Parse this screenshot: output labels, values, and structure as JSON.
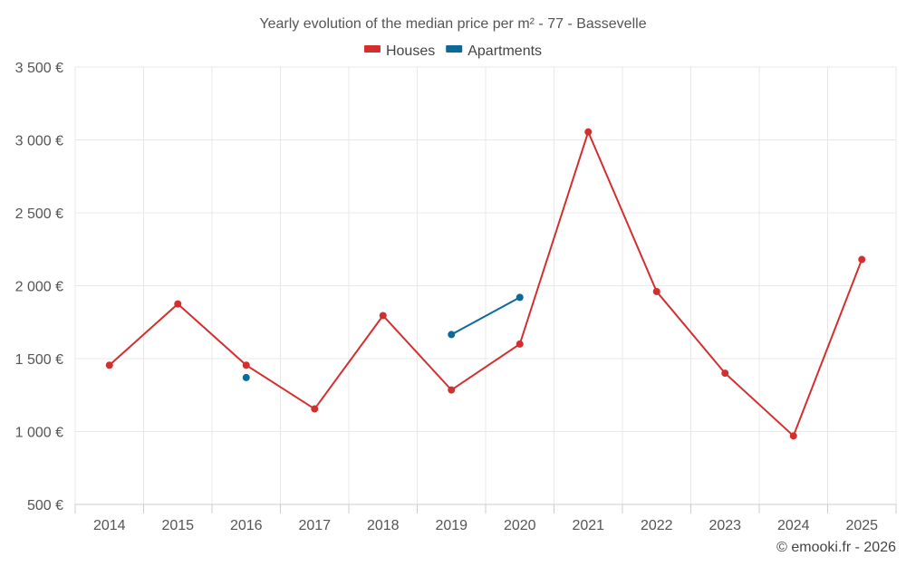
{
  "chart_data": {
    "type": "line",
    "title": "Yearly evolution of the median price per m² - 77 - Bassevelle",
    "categories": [
      "2014",
      "2015",
      "2016",
      "2017",
      "2018",
      "2019",
      "2020",
      "2021",
      "2022",
      "2023",
      "2024",
      "2025"
    ],
    "ylim": [
      500,
      3500
    ],
    "yticks": [
      500,
      1000,
      1500,
      2000,
      2500,
      3000,
      3500
    ],
    "ytick_labels": [
      "500 €",
      "1 000 €",
      "1 500 €",
      "2 000 €",
      "2 500 €",
      "3 000 €",
      "3 500 €"
    ],
    "grid": true,
    "legend_position": "top-center",
    "series": [
      {
        "name": "Houses",
        "color": "#d32f2f",
        "values": [
          1455,
          1875,
          1455,
          1155,
          1795,
          1285,
          1600,
          3055,
          1960,
          1400,
          970,
          2180
        ]
      },
      {
        "name": "Apartments",
        "color": "#0b6a9a",
        "values": [
          null,
          null,
          1370,
          null,
          null,
          1665,
          1920,
          null,
          null,
          null,
          null,
          null
        ]
      }
    ]
  },
  "credit": "© emooki.fr - 2026"
}
